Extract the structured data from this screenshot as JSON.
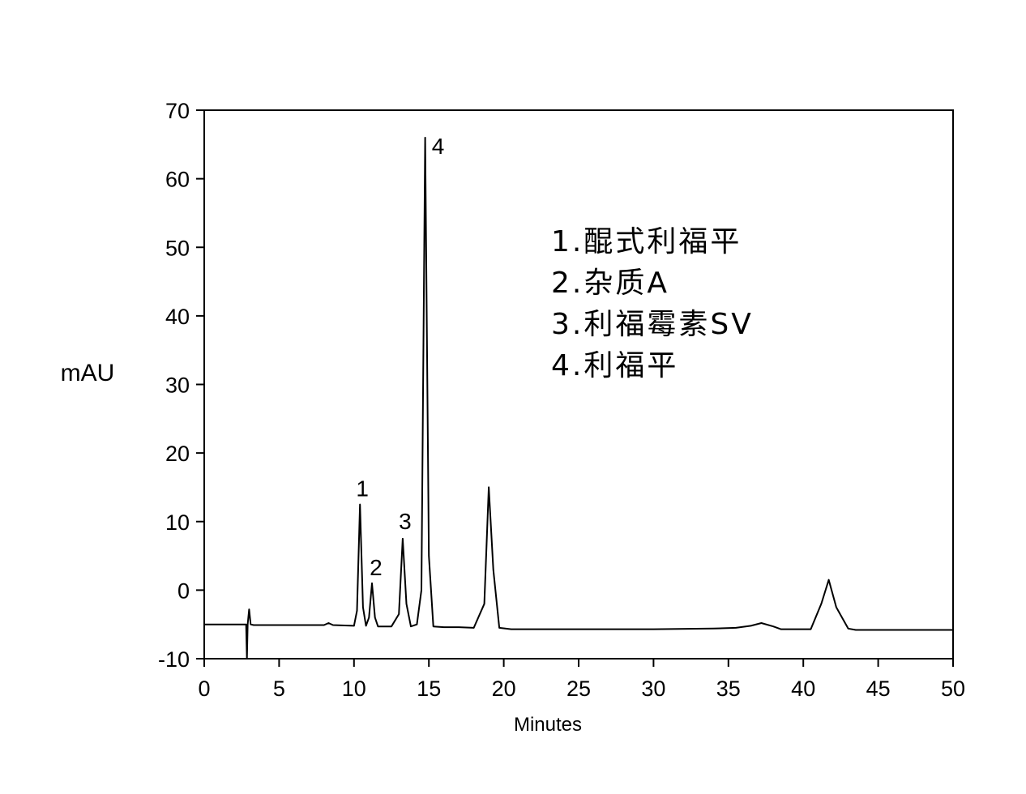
{
  "chart_data": {
    "type": "line",
    "xlabel": "Minutes",
    "ylabel": "mAU",
    "xlim": [
      0,
      50
    ],
    "ylim": [
      -10,
      70
    ],
    "x_ticks": [
      "0",
      "5",
      "10",
      "15",
      "20",
      "25",
      "30",
      "35",
      "40",
      "45",
      "50"
    ],
    "y_ticks": [
      "-10",
      "0",
      "10",
      "20",
      "30",
      "40",
      "50",
      "60",
      "70"
    ],
    "grid": false,
    "legend_position": "top-right",
    "line_color": "#000000",
    "series": [
      {
        "x": [
          0,
          2.8,
          2.85,
          2.9,
          3.0,
          3.1,
          3.3,
          8.0,
          8.3,
          8.6,
          10.0,
          10.2,
          10.4,
          10.6,
          10.8,
          11.0,
          11.2,
          11.4,
          11.6,
          12.5,
          13.0,
          13.25,
          13.5,
          13.8,
          14.2,
          14.5,
          14.75,
          15.0,
          15.3,
          16.0,
          17.0,
          18.0,
          18.7,
          19.0,
          19.3,
          19.7,
          20.5,
          30.0,
          34.0,
          35.5,
          36.5,
          37.2,
          38.0,
          38.5,
          40.5,
          41.2,
          41.7,
          42.2,
          43.0,
          43.5,
          50.0
        ],
        "y": [
          -5.0,
          -5.0,
          -10.0,
          -5.0,
          -2.8,
          -5.0,
          -5.1,
          -5.1,
          -4.8,
          -5.1,
          -5.2,
          -3.0,
          12.5,
          -2.5,
          -5.2,
          -4.0,
          1.0,
          -4.0,
          -5.3,
          -5.3,
          -3.5,
          7.5,
          -2.0,
          -5.3,
          -5.0,
          0.0,
          66.0,
          5.0,
          -5.3,
          -5.4,
          -5.4,
          -5.5,
          -2.0,
          15.0,
          3.0,
          -5.5,
          -5.7,
          -5.7,
          -5.6,
          -5.5,
          -5.2,
          -4.8,
          -5.3,
          -5.7,
          -5.7,
          -2.0,
          1.5,
          -2.5,
          -5.6,
          -5.8,
          -5.8
        ]
      }
    ],
    "annotations": [
      {
        "label": "1",
        "x": 10.4,
        "y": 12.5
      },
      {
        "label": "2",
        "x": 11.2,
        "y": 1.0
      },
      {
        "label": "3",
        "x": 13.25,
        "y": 7.5
      },
      {
        "label": "4",
        "x": 14.75,
        "y": 66.0
      }
    ],
    "legend": [
      {
        "num": "1.",
        "text": "醌式利福平"
      },
      {
        "num": "2.",
        "text": "杂质A"
      },
      {
        "num": "3.",
        "text": "利福霉素SV"
      },
      {
        "num": "4.",
        "text": "利福平"
      }
    ]
  }
}
